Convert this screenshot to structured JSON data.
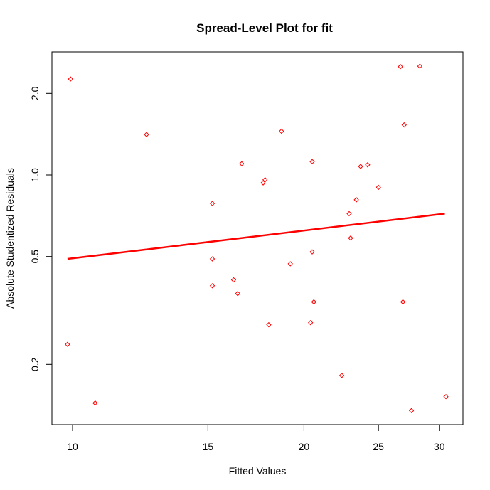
{
  "chart_data": {
    "type": "scatter",
    "title": "Spread-Level Plot for fit",
    "xlabel": "Fitted Values",
    "ylabel": "Absolute Studentized Residuals",
    "xscale": "log",
    "yscale": "log",
    "xlim": [
      9.6,
      31.5
    ],
    "ylim": [
      0.118,
      2.85
    ],
    "xticks": [
      10,
      15,
      20,
      25,
      30
    ],
    "xtick_labels": [
      "10",
      "15",
      "20",
      "25",
      "30"
    ],
    "yticks": [
      0.2,
      0.5,
      1.0,
      2.0
    ],
    "ytick_labels": [
      "0.2",
      "0.5",
      "1.0",
      "2.0"
    ],
    "grid": false,
    "legend": null,
    "point_color": "#ff0000",
    "line_color": "#ff0000",
    "points": [
      {
        "x": 9.94,
        "y": 2.26
      },
      {
        "x": 12.48,
        "y": 1.41
      },
      {
        "x": 18.7,
        "y": 1.45
      },
      {
        "x": 16.6,
        "y": 1.1
      },
      {
        "x": 20.5,
        "y": 1.12
      },
      {
        "x": 17.8,
        "y": 0.96
      },
      {
        "x": 17.7,
        "y": 0.935
      },
      {
        "x": 15.2,
        "y": 0.785
      },
      {
        "x": 26.7,
        "y": 2.51
      },
      {
        "x": 28.3,
        "y": 2.52
      },
      {
        "x": 27.0,
        "y": 1.53
      },
      {
        "x": 23.7,
        "y": 1.075
      },
      {
        "x": 24.2,
        "y": 1.09
      },
      {
        "x": 25.0,
        "y": 0.9
      },
      {
        "x": 23.4,
        "y": 0.81
      },
      {
        "x": 22.9,
        "y": 0.72
      },
      {
        "x": 23.0,
        "y": 0.585
      },
      {
        "x": 15.2,
        "y": 0.49
      },
      {
        "x": 20.5,
        "y": 0.52
      },
      {
        "x": 19.2,
        "y": 0.47
      },
      {
        "x": 15.2,
        "y": 0.39
      },
      {
        "x": 16.2,
        "y": 0.41
      },
      {
        "x": 16.4,
        "y": 0.365
      },
      {
        "x": 20.6,
        "y": 0.34
      },
      {
        "x": 18.0,
        "y": 0.28
      },
      {
        "x": 20.4,
        "y": 0.285
      },
      {
        "x": 26.9,
        "y": 0.34
      },
      {
        "x": 9.85,
        "y": 0.237
      },
      {
        "x": 10.7,
        "y": 0.144
      },
      {
        "x": 22.4,
        "y": 0.182
      },
      {
        "x": 30.6,
        "y": 0.152
      },
      {
        "x": 27.6,
        "y": 0.135
      }
    ],
    "fit_line": {
      "x": [
        9.85,
        30.5
      ],
      "y": [
        0.49,
        0.72
      ]
    }
  }
}
